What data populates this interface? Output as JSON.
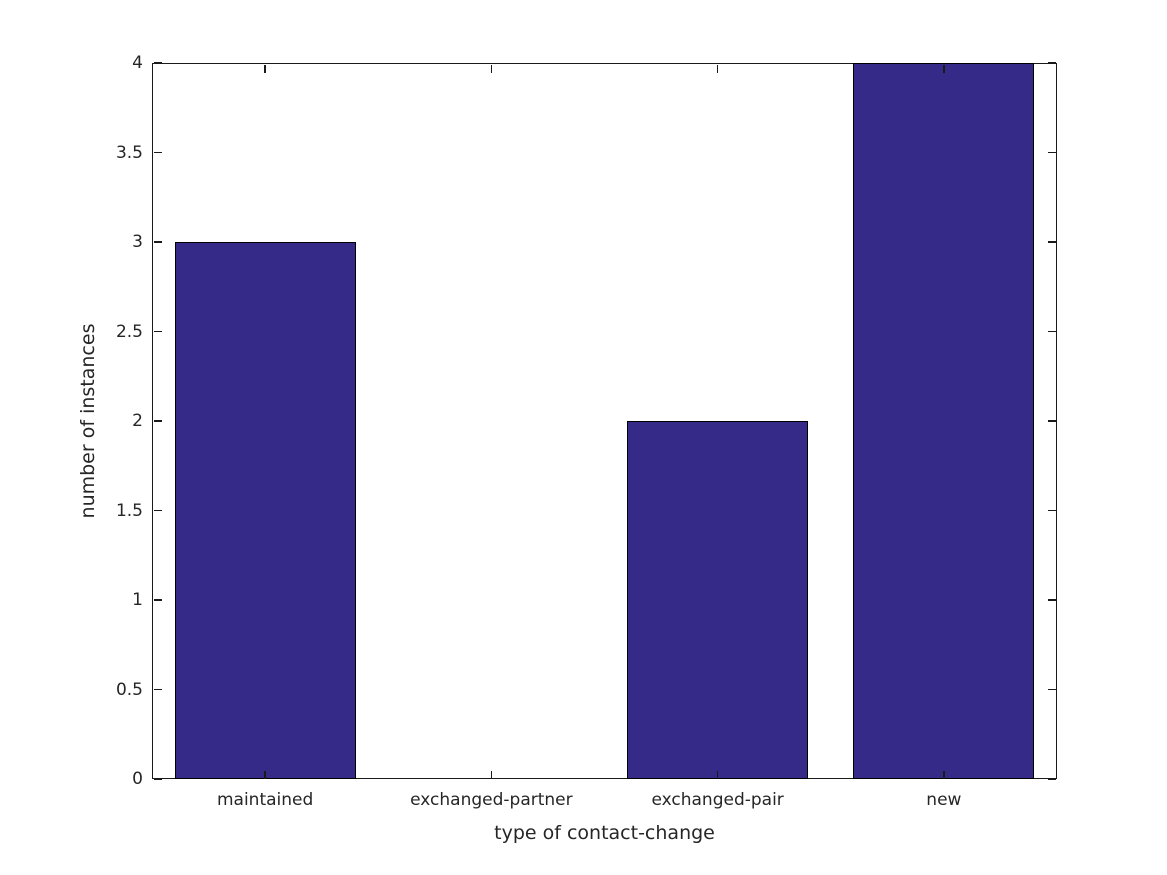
{
  "chart_data": {
    "type": "bar",
    "title": "",
    "xlabel": "type of contact-change",
    "ylabel": "number of instances",
    "categories": [
      "maintained",
      "exchanged-partner",
      "exchanged-pair",
      "new"
    ],
    "values": [
      3,
      0,
      2,
      4
    ],
    "ylim": [
      0,
      4
    ],
    "yticks": [
      0,
      0.5,
      1,
      1.5,
      2,
      2.5,
      3,
      3.5,
      4
    ],
    "ytick_labels": [
      "0",
      "0.5",
      "1",
      "1.5",
      "2",
      "2.5",
      "3",
      "3.5",
      "4"
    ],
    "bar_width_fraction": 0.8,
    "bar_color": "#352a87",
    "bar_edge_color": "#000000",
    "axis_color": "#1a1a1a",
    "text_color": "#262626",
    "background_color": "#ffffff",
    "grid": false,
    "legend_position": "none",
    "tick_direction": "in",
    "box": true
  }
}
